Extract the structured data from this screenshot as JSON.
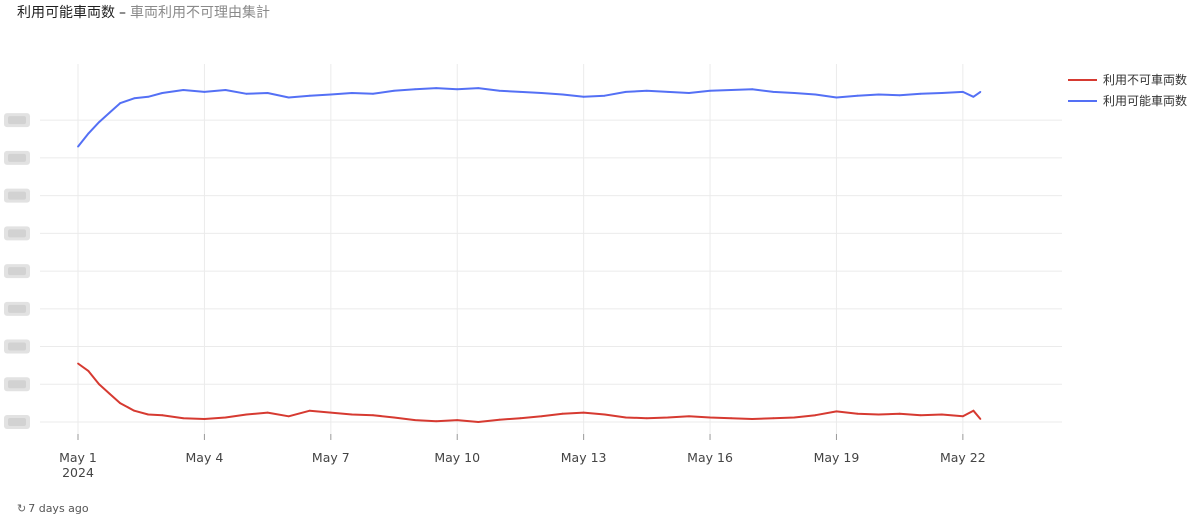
{
  "header": {
    "title": "利用可能車両数",
    "separator": "–",
    "subtitle": "車両利用不可理由集計"
  },
  "footer": {
    "refresh_icon": "refresh-icon",
    "updated_text": "7 days ago"
  },
  "chart_data": {
    "type": "line",
    "title": "",
    "xlabel": "",
    "ylabel": "",
    "x_axis": {
      "type": "date",
      "range": [
        "2024-05-01",
        "2024-05-23"
      ],
      "tick_labels": [
        "May 1",
        "May 4",
        "May 7",
        "May 10",
        "May 13",
        "May 16",
        "May 19",
        "May 22"
      ],
      "tick_dates": [
        "2024-05-01",
        "2024-05-04",
        "2024-05-07",
        "2024-05-10",
        "2024-05-13",
        "2024-05-16",
        "2024-05-19",
        "2024-05-22"
      ],
      "year_label": "2024"
    },
    "y_axis": {
      "range": [
        0,
        8.8
      ],
      "gridlines": [
        0,
        1,
        2,
        3,
        4,
        5,
        6,
        7,
        8
      ],
      "tick_labels_obscured": true
    },
    "grid": true,
    "legend_placement": "top-right",
    "series": [
      {
        "name": "利用不可車両数",
        "color": "#d63a31",
        "points": [
          [
            "2024-05-01",
            1.55
          ],
          [
            "2024-05-01T06",
            1.35
          ],
          [
            "2024-05-01T12",
            1.0
          ],
          [
            "2024-05-01T18",
            0.75
          ],
          [
            "2024-05-02",
            0.5
          ],
          [
            "2024-05-02T08",
            0.3
          ],
          [
            "2024-05-02T16",
            0.2
          ],
          [
            "2024-05-03",
            0.18
          ],
          [
            "2024-05-03T12",
            0.1
          ],
          [
            "2024-05-04",
            0.08
          ],
          [
            "2024-05-04T12",
            0.12
          ],
          [
            "2024-05-05",
            0.2
          ],
          [
            "2024-05-05T12",
            0.25
          ],
          [
            "2024-05-06",
            0.15
          ],
          [
            "2024-05-06T12",
            0.3
          ],
          [
            "2024-05-07",
            0.25
          ],
          [
            "2024-05-07T12",
            0.2
          ],
          [
            "2024-05-08",
            0.18
          ],
          [
            "2024-05-08T12",
            0.12
          ],
          [
            "2024-05-09",
            0.05
          ],
          [
            "2024-05-09T12",
            0.02
          ],
          [
            "2024-05-10",
            0.05
          ],
          [
            "2024-05-10T12",
            0.0
          ],
          [
            "2024-05-11",
            0.06
          ],
          [
            "2024-05-11T12",
            0.1
          ],
          [
            "2024-05-12",
            0.15
          ],
          [
            "2024-05-12T12",
            0.22
          ],
          [
            "2024-05-13",
            0.25
          ],
          [
            "2024-05-13T12",
            0.2
          ],
          [
            "2024-05-14",
            0.12
          ],
          [
            "2024-05-14T12",
            0.1
          ],
          [
            "2024-05-15",
            0.12
          ],
          [
            "2024-05-15T12",
            0.15
          ],
          [
            "2024-05-16",
            0.12
          ],
          [
            "2024-05-16T12",
            0.1
          ],
          [
            "2024-05-17",
            0.08
          ],
          [
            "2024-05-17T12",
            0.1
          ],
          [
            "2024-05-18",
            0.12
          ],
          [
            "2024-05-18T12",
            0.18
          ],
          [
            "2024-05-19",
            0.28
          ],
          [
            "2024-05-19T12",
            0.22
          ],
          [
            "2024-05-20",
            0.2
          ],
          [
            "2024-05-20T12",
            0.22
          ],
          [
            "2024-05-21",
            0.18
          ],
          [
            "2024-05-21T12",
            0.2
          ],
          [
            "2024-05-22",
            0.15
          ],
          [
            "2024-05-22T06",
            0.3
          ],
          [
            "2024-05-22T10",
            0.08
          ]
        ]
      },
      {
        "name": "利用可能車両数",
        "color": "#5470f5",
        "points": [
          [
            "2024-05-01",
            7.3
          ],
          [
            "2024-05-01T06",
            7.65
          ],
          [
            "2024-05-01T12",
            7.95
          ],
          [
            "2024-05-01T18",
            8.2
          ],
          [
            "2024-05-02",
            8.45
          ],
          [
            "2024-05-02T08",
            8.58
          ],
          [
            "2024-05-02T16",
            8.62
          ],
          [
            "2024-05-03",
            8.72
          ],
          [
            "2024-05-03T12",
            8.8
          ],
          [
            "2024-05-04",
            8.75
          ],
          [
            "2024-05-04T12",
            8.8
          ],
          [
            "2024-05-05",
            8.7
          ],
          [
            "2024-05-05T12",
            8.72
          ],
          [
            "2024-05-06",
            8.6
          ],
          [
            "2024-05-06T12",
            8.65
          ],
          [
            "2024-05-07",
            8.68
          ],
          [
            "2024-05-07T12",
            8.72
          ],
          [
            "2024-05-08",
            8.7
          ],
          [
            "2024-05-08T12",
            8.78
          ],
          [
            "2024-05-09",
            8.82
          ],
          [
            "2024-05-09T12",
            8.85
          ],
          [
            "2024-05-10",
            8.82
          ],
          [
            "2024-05-10T12",
            8.85
          ],
          [
            "2024-05-11",
            8.78
          ],
          [
            "2024-05-11T12",
            8.75
          ],
          [
            "2024-05-12",
            8.72
          ],
          [
            "2024-05-12T12",
            8.68
          ],
          [
            "2024-05-13",
            8.62
          ],
          [
            "2024-05-13T12",
            8.65
          ],
          [
            "2024-05-14",
            8.75
          ],
          [
            "2024-05-14T12",
            8.78
          ],
          [
            "2024-05-15",
            8.75
          ],
          [
            "2024-05-15T12",
            8.72
          ],
          [
            "2024-05-16",
            8.78
          ],
          [
            "2024-05-16T12",
            8.8
          ],
          [
            "2024-05-17",
            8.82
          ],
          [
            "2024-05-17T12",
            8.75
          ],
          [
            "2024-05-18",
            8.72
          ],
          [
            "2024-05-18T12",
            8.68
          ],
          [
            "2024-05-19",
            8.6
          ],
          [
            "2024-05-19T12",
            8.65
          ],
          [
            "2024-05-20",
            8.68
          ],
          [
            "2024-05-20T12",
            8.66
          ],
          [
            "2024-05-21",
            8.7
          ],
          [
            "2024-05-21T12",
            8.72
          ],
          [
            "2024-05-22",
            8.75
          ],
          [
            "2024-05-22T06",
            8.62
          ],
          [
            "2024-05-22T10",
            8.75
          ]
        ]
      }
    ]
  }
}
